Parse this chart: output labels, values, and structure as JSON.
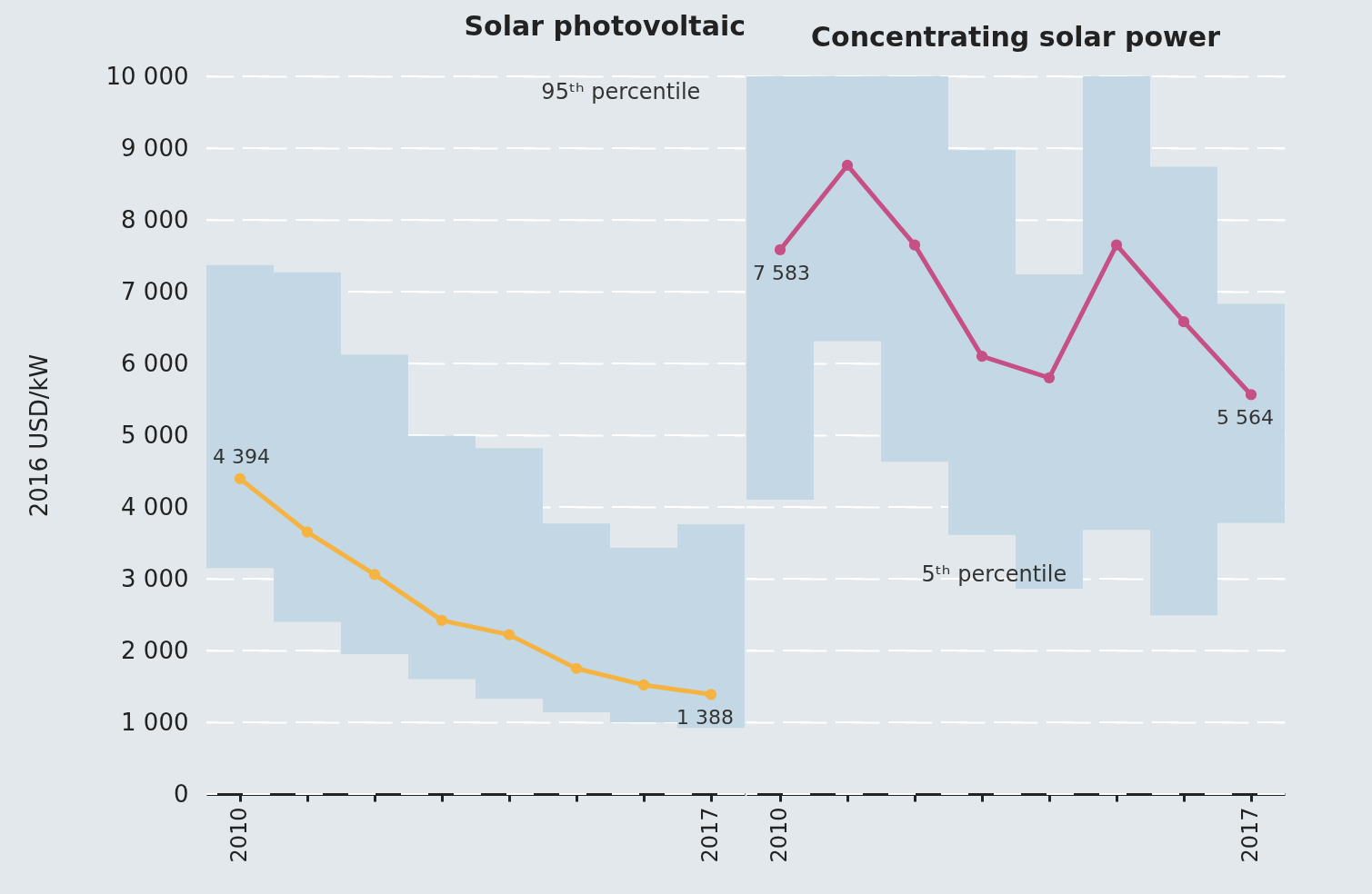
{
  "chart_data": [
    {
      "type": "bar",
      "title": "Solar photovoltaic",
      "ylabel": "2016 USD/kW",
      "categories": [
        "2010",
        null,
        null,
        null,
        null,
        null,
        null,
        "2017"
      ],
      "series": [
        {
          "color": "#c3d8e4",
          "base": [
            3150,
            2400,
            1950,
            1600,
            1330,
            1140,
            1000,
            920
          ],
          "values": [
            4220,
            4870,
            4170,
            3390,
            3490,
            2630,
            2430,
            2840
          ]
        },
        {
          "type": "line",
          "color": "#f5b342",
          "values": [
            4394,
            3650,
            3060,
            2420,
            2220,
            1750,
            1520,
            1388
          ],
          "value_labels": [
            "4 394",
            null,
            null,
            null,
            null,
            null,
            null,
            "1 388"
          ]
        }
      ],
      "ylim": [
        0,
        10000
      ],
      "yticks": [
        0,
        {
          "value": 1000,
          "label": "1 000"
        },
        {
          "value": 2000,
          "label": "2 000"
        },
        {
          "value": 3000,
          "label": "3 000"
        },
        {
          "value": 4000,
          "label": "4 000"
        },
        {
          "value": 5000,
          "label": "5 000"
        },
        {
          "value": 6000,
          "label": "6 000"
        },
        {
          "value": 7000,
          "label": "7 000"
        },
        {
          "value": 8000,
          "label": "8 000"
        },
        {
          "value": 9000,
          "label": "9 000"
        },
        {
          "value": 10000,
          "label": "10 000"
        }
      ],
      "grid": "y",
      "marker": "circle",
      "annotations": [
        "95ᵗʰ percentile"
      ]
    },
    {
      "type": "bar",
      "title": "Concentrating solar power",
      "categories": [
        "2010",
        null,
        null,
        null,
        null,
        null,
        null,
        "2017"
      ],
      "series": [
        {
          "color": "#c3d8e4",
          "base": [
            4100,
            6310,
            4630,
            3610,
            2860,
            3680,
            2490,
            3780
          ],
          "values": [
            5900,
            3690,
            5370,
            5360,
            4380,
            6320,
            6250,
            3050
          ]
        },
        {
          "type": "line",
          "color": "#c64f86",
          "values": [
            7583,
            8760,
            7650,
            6100,
            5800,
            7650,
            6580,
            5564
          ],
          "value_labels": [
            "7 583",
            null,
            null,
            null,
            null,
            null,
            null,
            "5 564"
          ]
        }
      ],
      "ylim": [
        0,
        10000
      ],
      "yticks": [
        0,
        1000,
        2000,
        3000,
        4000,
        5000,
        6000,
        7000,
        8000,
        9000,
        10000
      ],
      "tick_labels": "x",
      "grid": "y",
      "marker": "circle",
      "annotations": [
        "5ᵗʰ percentile"
      ]
    }
  ]
}
